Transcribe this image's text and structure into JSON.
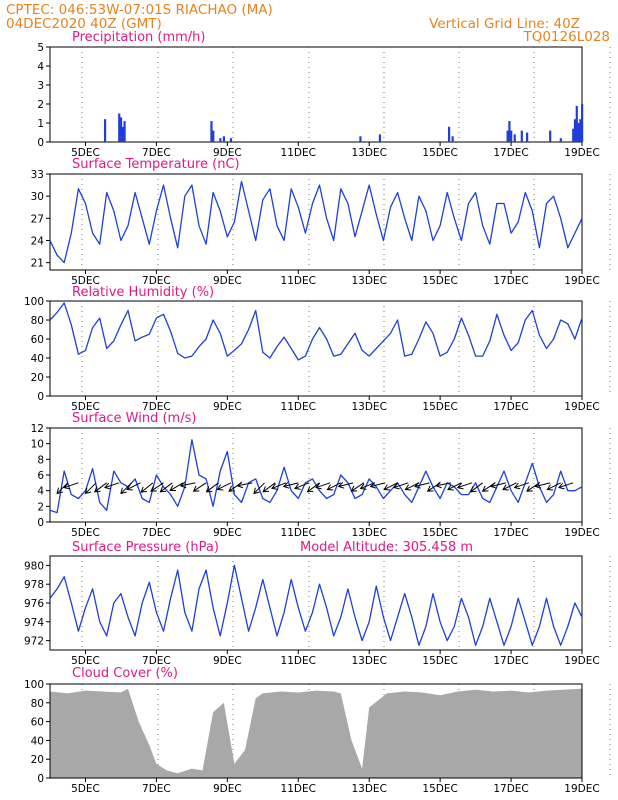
{
  "header": {
    "line1": "CPTEC:   046:53W-07:01S   RIACHAO (MA)",
    "line2": "04DEC2020 40Z (GMT)",
    "grid_note": "Vertical Grid Line: 40Z",
    "code": "TQ0126L028"
  },
  "colors": {
    "header": "#e8821e",
    "title": "#e0198a",
    "series": "#1f3fd8",
    "cloud": "#a8a8a8",
    "axis": "#000000"
  },
  "x_axis": {
    "start": "04DEC2020 00Z",
    "end": "19DEC2020 00Z",
    "tick_labels": [
      "5DEC",
      "7DEC",
      "9DEC",
      "11DEC",
      "13DEC",
      "15DEC",
      "17DEC",
      "19DEC"
    ],
    "tick_day_offsets": [
      1,
      3,
      5,
      7,
      9,
      11,
      13,
      15
    ],
    "vertical_grid_time": "40Z"
  },
  "chart_data": [
    {
      "name": "precipitation",
      "type": "bar",
      "title": "Precipitation (mm/h)",
      "ylim": [
        0,
        5
      ],
      "yticks": [
        0,
        1,
        2,
        3,
        4,
        5
      ],
      "grid": "dotted-vertical",
      "x_days": [
        1.55,
        1.95,
        2.0,
        2.05,
        2.1,
        4.55,
        4.6,
        4.8,
        4.9,
        5.1,
        8.75,
        9.3,
        11.25,
        11.35,
        12.9,
        12.95,
        13.0,
        13.1,
        13.3,
        13.45,
        14.1,
        14.4,
        14.75,
        14.8,
        14.85,
        14.9,
        14.95,
        15.0
      ],
      "values": [
        1.2,
        1.5,
        1.3,
        0.8,
        1.1,
        1.1,
        0.6,
        0.2,
        0.3,
        0.2,
        0.3,
        0.4,
        0.8,
        0.3,
        0.6,
        1.1,
        0.6,
        0.4,
        0.6,
        0.5,
        0.6,
        0.2,
        0.7,
        1.2,
        1.9,
        1.0,
        1.2,
        2.0
      ]
    },
    {
      "name": "surface-temperature",
      "type": "line",
      "title": "Surface Temperature (nC)",
      "ylim": [
        20,
        33
      ],
      "yticks": [
        21,
        24,
        27,
        30,
        33
      ],
      "grid": "dotted-vertical",
      "x_days": [
        0,
        0.2,
        0.4,
        0.6,
        0.8,
        1.0,
        1.2,
        1.4,
        1.6,
        1.8,
        2.0,
        2.2,
        2.4,
        2.6,
        2.8,
        3.0,
        3.2,
        3.4,
        3.6,
        3.8,
        4.0,
        4.2,
        4.4,
        4.6,
        4.8,
        5.0,
        5.2,
        5.4,
        5.6,
        5.8,
        6.0,
        6.2,
        6.4,
        6.6,
        6.8,
        7.0,
        7.2,
        7.4,
        7.6,
        7.8,
        8.0,
        8.2,
        8.4,
        8.6,
        8.8,
        9.0,
        9.2,
        9.4,
        9.6,
        9.8,
        10.0,
        10.2,
        10.4,
        10.6,
        10.8,
        11.0,
        11.2,
        11.4,
        11.6,
        11.8,
        12.0,
        12.2,
        12.4,
        12.6,
        12.8,
        13.0,
        13.2,
        13.4,
        13.6,
        13.8,
        14.0,
        14.2,
        14.4,
        14.6,
        14.8,
        15.0
      ],
      "values": [
        24.0,
        22.0,
        21.0,
        25.0,
        31.0,
        29.0,
        25.0,
        23.5,
        30.5,
        28.0,
        24.0,
        26.0,
        30.5,
        27.0,
        23.5,
        28.0,
        31.5,
        27.0,
        23.0,
        30.0,
        31.5,
        26.0,
        23.5,
        30.5,
        28.0,
        24.5,
        26.5,
        32.0,
        28.0,
        24.0,
        29.5,
        31.0,
        26.0,
        24.0,
        31.0,
        28.5,
        25.0,
        29.0,
        31.5,
        27.0,
        24.0,
        31.0,
        29.0,
        24.5,
        28.0,
        31.5,
        27.5,
        24.0,
        28.5,
        30.5,
        27.0,
        24.0,
        30.0,
        28.0,
        24.0,
        26.0,
        30.5,
        27.0,
        24.0,
        29.0,
        30.5,
        26.0,
        23.5,
        29.0,
        29.0,
        25.0,
        26.5,
        30.5,
        28.0,
        23.0,
        29.0,
        30.0,
        27.0,
        23.0,
        25.0,
        27.0
      ]
    },
    {
      "name": "relative-humidity",
      "type": "line",
      "title": "Relative Humidity (%)",
      "ylim": [
        0,
        100
      ],
      "yticks": [
        0,
        20,
        40,
        60,
        80,
        100
      ],
      "grid": "dotted-vertical",
      "x_days": [
        0,
        0.2,
        0.4,
        0.6,
        0.8,
        1.0,
        1.2,
        1.4,
        1.6,
        1.8,
        2.0,
        2.2,
        2.4,
        2.6,
        2.8,
        3.0,
        3.2,
        3.4,
        3.6,
        3.8,
        4.0,
        4.2,
        4.4,
        4.6,
        4.8,
        5.0,
        5.2,
        5.4,
        5.6,
        5.8,
        6.0,
        6.2,
        6.4,
        6.6,
        6.8,
        7.0,
        7.2,
        7.4,
        7.6,
        7.8,
        8.0,
        8.2,
        8.4,
        8.6,
        8.8,
        9.0,
        9.2,
        9.4,
        9.6,
        9.8,
        10.0,
        10.2,
        10.4,
        10.6,
        10.8,
        11.0,
        11.2,
        11.4,
        11.6,
        11.8,
        12.0,
        12.2,
        12.4,
        12.6,
        12.8,
        13.0,
        13.2,
        13.4,
        13.6,
        13.8,
        14.0,
        14.2,
        14.4,
        14.6,
        14.8,
        15.0
      ],
      "values": [
        80,
        88,
        98,
        75,
        44,
        48,
        72,
        82,
        50,
        58,
        75,
        90,
        58,
        62,
        65,
        82,
        86,
        68,
        45,
        40,
        42,
        52,
        60,
        80,
        66,
        42,
        48,
        55,
        70,
        90,
        46,
        40,
        52,
        62,
        50,
        38,
        42,
        60,
        72,
        60,
        42,
        44,
        55,
        66,
        48,
        42,
        50,
        58,
        66,
        80,
        42,
        44,
        60,
        78,
        66,
        42,
        46,
        60,
        82,
        64,
        42,
        42,
        58,
        86,
        64,
        48,
        56,
        80,
        90,
        64,
        50,
        60,
        80,
        76,
        60,
        82
      ]
    },
    {
      "name": "surface-wind",
      "type": "line",
      "title": "Surface Wind (m/s)",
      "ylim": [
        0,
        12
      ],
      "yticks": [
        0,
        2,
        4,
        6,
        8,
        10,
        12
      ],
      "grid": "dotted-vertical",
      "x_days": [
        0,
        0.2,
        0.4,
        0.6,
        0.8,
        1.0,
        1.2,
        1.4,
        1.6,
        1.8,
        2.0,
        2.2,
        2.4,
        2.6,
        2.8,
        3.0,
        3.2,
        3.4,
        3.6,
        3.8,
        4.0,
        4.2,
        4.4,
        4.6,
        4.8,
        5.0,
        5.2,
        5.4,
        5.6,
        5.8,
        6.0,
        6.2,
        6.4,
        6.6,
        6.8,
        7.0,
        7.2,
        7.4,
        7.6,
        7.8,
        8.0,
        8.2,
        8.4,
        8.6,
        8.8,
        9.0,
        9.2,
        9.4,
        9.6,
        9.8,
        10.0,
        10.2,
        10.4,
        10.6,
        10.8,
        11.0,
        11.2,
        11.4,
        11.6,
        11.8,
        12.0,
        12.2,
        12.4,
        12.6,
        12.8,
        13.0,
        13.2,
        13.4,
        13.6,
        13.8,
        14.0,
        14.2,
        14.4,
        14.6,
        14.8,
        15.0
      ],
      "values": [
        1.5,
        1.2,
        6.5,
        3.5,
        3.0,
        4.0,
        6.8,
        2.5,
        1.5,
        6.5,
        5.0,
        4.5,
        5.5,
        3.0,
        2.5,
        6.0,
        4.5,
        3.5,
        2.0,
        4.5,
        10.5,
        6.0,
        5.5,
        2.0,
        6.5,
        9.0,
        3.5,
        2.5,
        5.0,
        5.5,
        3.0,
        2.5,
        4.0,
        7.0,
        4.0,
        3.0,
        5.0,
        5.5,
        4.0,
        3.0,
        3.5,
        6.0,
        5.0,
        3.0,
        3.5,
        5.5,
        4.5,
        3.0,
        4.0,
        5.0,
        3.5,
        2.5,
        4.5,
        6.5,
        4.5,
        3.0,
        5.0,
        4.5,
        3.5,
        3.5,
        5.0,
        3.0,
        2.5,
        4.5,
        6.5,
        4.0,
        2.5,
        5.0,
        7.5,
        4.5,
        2.5,
        3.5,
        6.5,
        4.0,
        4.0,
        4.5
      ],
      "arrows": {
        "x_days": [
          0.5,
          0.8,
          1.3,
          1.6,
          1.95,
          2.3,
          2.55,
          2.9,
          3.2,
          3.45,
          3.75,
          4.1,
          4.4,
          4.75,
          5.1,
          5.4,
          5.7,
          6.05,
          6.35,
          6.65,
          7.0,
          7.3,
          7.6,
          7.9,
          8.2,
          8.55,
          8.85,
          9.15,
          9.45,
          9.8,
          10.1,
          10.4,
          10.7,
          11.0,
          11.3,
          11.6,
          11.9,
          12.2,
          12.55,
          12.85,
          13.15,
          13.5,
          13.8,
          14.1,
          14.4,
          14.75
        ],
        "u": [
          -2,
          -3,
          -2,
          -4,
          -3,
          -3,
          -4,
          -5,
          -3,
          -4,
          -5,
          -5,
          -3,
          -4,
          -4,
          -3,
          -5,
          -3,
          -4,
          -5,
          -4,
          -5,
          -4,
          -3,
          -4,
          -4,
          -3,
          -5,
          -4,
          -4,
          -3,
          -4,
          -4,
          -3,
          -5,
          -4,
          -3,
          -4,
          -3,
          -4,
          -4,
          -3,
          -3,
          -4,
          -4,
          -3
        ],
        "v": [
          -2,
          -1,
          -2,
          -3,
          -1,
          -3,
          -2,
          -4,
          -2,
          -3,
          -3,
          -1,
          -2,
          -3,
          -2,
          -2,
          -1,
          -3,
          -3,
          -2,
          -1,
          -2,
          -3,
          -1,
          -2,
          -1,
          -2,
          -2,
          -1,
          -2,
          -1,
          -2,
          -1,
          -2,
          -1,
          -2,
          -1,
          -3,
          -2,
          -1,
          -2,
          -1,
          -2,
          -1,
          -2,
          -1
        ]
      }
    },
    {
      "name": "surface-pressure",
      "type": "line",
      "title": "Surface Pressure (hPa)",
      "subtitle": "Model Altitude: 305.458  m",
      "ylim": [
        971,
        981
      ],
      "yticks": [
        972,
        974,
        976,
        978,
        980
      ],
      "grid": "dotted-vertical",
      "x_days": [
        0,
        0.2,
        0.4,
        0.6,
        0.8,
        1.0,
        1.2,
        1.4,
        1.6,
        1.8,
        2.0,
        2.2,
        2.4,
        2.6,
        2.8,
        3.0,
        3.2,
        3.4,
        3.6,
        3.8,
        4.0,
        4.2,
        4.4,
        4.6,
        4.8,
        5.0,
        5.2,
        5.4,
        5.6,
        5.8,
        6.0,
        6.2,
        6.4,
        6.6,
        6.8,
        7.0,
        7.2,
        7.4,
        7.6,
        7.8,
        8.0,
        8.2,
        8.4,
        8.6,
        8.8,
        9.0,
        9.2,
        9.4,
        9.6,
        9.8,
        10.0,
        10.2,
        10.4,
        10.6,
        10.8,
        11.0,
        11.2,
        11.4,
        11.6,
        11.8,
        12.0,
        12.2,
        12.4,
        12.6,
        12.8,
        13.0,
        13.2,
        13.4,
        13.6,
        13.8,
        14.0,
        14.2,
        14.4,
        14.6,
        14.8,
        15.0
      ],
      "values": [
        976.5,
        977.5,
        978.8,
        976.0,
        973.0,
        975.5,
        977.5,
        974.0,
        972.5,
        976.0,
        977.0,
        974.5,
        972.5,
        976.0,
        978.2,
        975.0,
        973.0,
        976.5,
        979.5,
        975.0,
        973.0,
        977.5,
        979.5,
        975.5,
        972.5,
        976.0,
        980.0,
        976.5,
        973.0,
        975.5,
        978.5,
        975.5,
        972.5,
        975.0,
        978.5,
        975.5,
        973.0,
        975.0,
        978.0,
        975.5,
        972.5,
        974.5,
        977.5,
        974.5,
        972.0,
        974.0,
        977.8,
        974.5,
        972.0,
        974.5,
        977.0,
        974.5,
        971.5,
        973.5,
        977.0,
        974.0,
        972.0,
        973.5,
        976.5,
        974.5,
        971.5,
        973.5,
        976.5,
        974.0,
        971.5,
        973.5,
        976.5,
        974.0,
        971.5,
        973.5,
        976.5,
        973.5,
        971.5,
        973.5,
        976.0,
        974.5
      ]
    },
    {
      "name": "cloud-cover",
      "type": "area",
      "title": "Cloud Cover (%)",
      "ylim": [
        0,
        100
      ],
      "yticks": [
        0,
        20,
        40,
        60,
        80,
        100
      ],
      "grid": "dotted-vertical",
      "x_days": [
        0,
        0.5,
        1.0,
        1.5,
        2.0,
        2.2,
        2.5,
        2.8,
        3.0,
        3.3,
        3.6,
        4.0,
        4.3,
        4.6,
        4.9,
        5.2,
        5.5,
        5.8,
        6.0,
        6.5,
        7.0,
        7.5,
        8.0,
        8.2,
        8.5,
        8.8,
        9.0,
        9.5,
        10.0,
        10.5,
        11.0,
        11.5,
        12.0,
        12.5,
        13.0,
        13.5,
        14.0,
        14.5,
        15.0
      ],
      "values": [
        92,
        90,
        93,
        92,
        91,
        95,
        60,
        35,
        15,
        8,
        5,
        10,
        8,
        70,
        80,
        15,
        30,
        85,
        90,
        92,
        91,
        93,
        92,
        90,
        40,
        10,
        75,
        90,
        92,
        91,
        88,
        92,
        94,
        92,
        93,
        91,
        93,
        94,
        95
      ]
    }
  ]
}
